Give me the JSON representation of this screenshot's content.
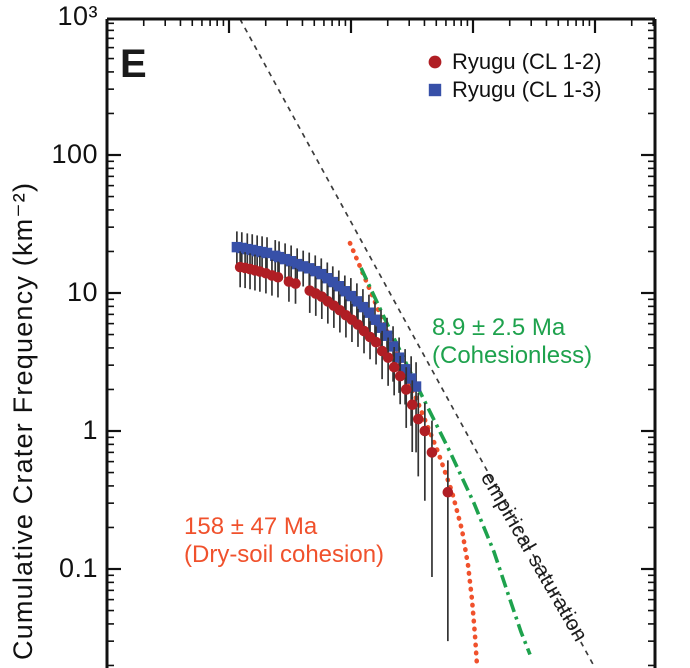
{
  "panel_label": "E",
  "colors": {
    "red_series": "#b01e24",
    "blue_series": "#3750a8",
    "green_fit": "#1ea24d",
    "orange_fit": "#f0512c",
    "saturation_line": "#3c3c3c",
    "error_bar": "#333333",
    "axis": "#111111"
  },
  "legend": {
    "items": [
      {
        "label": "Ryugu (CL 1-2)",
        "marker": "circle",
        "color": "#b01e24"
      },
      {
        "label": "Ryugu (CL 1-3)",
        "marker": "square",
        "color": "#3750a8"
      }
    ]
  },
  "annotations": {
    "cohesionless": {
      "line1": "8.9 ± 2.5 Ma",
      "line2": "(Cohesionless)",
      "color": "#1ea24d"
    },
    "dry_soil": {
      "line1": "158 ± 47 Ma",
      "line2": "(Dry-soil cohesion)",
      "color": "#f0512c"
    },
    "saturation": {
      "text": "empirical saturation",
      "color": "#1b1b1b"
    }
  },
  "y_axis": {
    "title": "Cumulative Crater Frequency (km⁻²)",
    "scale": "log",
    "tick_labels": [
      "10³",
      "100",
      "10",
      "1",
      "0.1"
    ],
    "tick_values": [
      1000,
      100,
      10,
      1,
      0.1
    ],
    "range_top": 1000,
    "range_bottom_visible": 0.019
  },
  "x_axis": {
    "scale": "log",
    "tick_labels_visible": false,
    "decades_visible": 4.5
  },
  "chart_data": {
    "type": "scatter",
    "x_unit": "fraction of plot width (log diameter axis, labels cut off)",
    "y_unit": "cumulative crater frequency (km^-2)",
    "series": [
      {
        "name": "Ryugu (CL 1-3)",
        "marker": "square",
        "color_key": "blue_series",
        "points": [
          [
            0.237,
            21.5,
            1.3,
            1.4
          ],
          [
            0.246,
            21.2,
            1.3,
            1.4
          ],
          [
            0.256,
            20.8,
            1.3,
            1.4
          ],
          [
            0.265,
            20.5,
            1.3,
            1.4
          ],
          [
            0.274,
            20.1,
            1.3,
            1.4
          ],
          [
            0.283,
            19.8,
            1.3,
            1.4
          ],
          [
            0.292,
            19.5,
            1.3,
            1.4
          ],
          [
            0.307,
            18.6,
            1.3,
            1.4
          ],
          [
            0.314,
            18.2,
            1.3,
            1.4
          ],
          [
            0.325,
            17.6,
            1.3,
            1.4
          ],
          [
            0.336,
            17.0,
            1.3,
            1.4
          ],
          [
            0.347,
            16.2,
            1.3,
            1.4
          ],
          [
            0.358,
            15.6,
            1.3,
            1.4
          ],
          [
            0.369,
            15.1,
            1.3,
            1.4
          ],
          [
            0.38,
            14.4,
            1.3,
            1.4
          ],
          [
            0.391,
            13.7,
            1.3,
            1.4
          ],
          [
            0.402,
            12.8,
            1.3,
            1.4
          ],
          [
            0.412,
            12.0,
            1.3,
            1.4
          ],
          [
            0.423,
            11.2,
            1.3,
            1.4
          ],
          [
            0.434,
            10.3,
            1.3,
            1.4
          ],
          [
            0.445,
            9.5,
            1.35,
            1.5
          ],
          [
            0.456,
            8.7,
            1.35,
            1.5
          ],
          [
            0.467,
            7.9,
            1.35,
            1.5
          ],
          [
            0.478,
            7.2,
            1.35,
            1.5
          ],
          [
            0.489,
            6.4,
            1.35,
            1.5
          ],
          [
            0.5,
            5.6,
            1.35,
            1.5
          ],
          [
            0.511,
            4.9,
            1.35,
            1.5
          ],
          [
            0.522,
            4.1,
            1.4,
            1.8
          ],
          [
            0.533,
            3.4,
            1.4,
            1.8
          ],
          [
            0.544,
            2.8,
            1.4,
            1.8
          ],
          [
            0.555,
            2.4,
            1.45,
            2.2
          ],
          [
            0.564,
            2.1,
            1.5,
            3.0
          ]
        ]
      },
      {
        "name": "Ryugu (CL 1-2)",
        "marker": "circle",
        "color_key": "red_series",
        "points": [
          [
            0.243,
            15.4,
            1.3,
            1.4
          ],
          [
            0.252,
            15.2,
            1.3,
            1.4
          ],
          [
            0.261,
            14.9,
            1.3,
            1.4
          ],
          [
            0.27,
            14.6,
            1.3,
            1.4
          ],
          [
            0.279,
            14.3,
            1.3,
            1.4
          ],
          [
            0.29,
            13.9,
            1.3,
            1.4
          ],
          [
            0.301,
            13.4,
            1.3,
            1.4
          ],
          [
            0.312,
            13.0,
            1.3,
            1.4
          ],
          [
            0.332,
            12.1,
            1.3,
            1.4
          ],
          [
            0.344,
            11.7,
            1.3,
            1.4
          ],
          [
            0.37,
            10.4,
            1.3,
            1.45
          ],
          [
            0.381,
            9.9,
            1.3,
            1.45
          ],
          [
            0.392,
            9.4,
            1.3,
            1.45
          ],
          [
            0.403,
            8.7,
            1.3,
            1.45
          ],
          [
            0.414,
            8.1,
            1.3,
            1.45
          ],
          [
            0.425,
            7.5,
            1.3,
            1.45
          ],
          [
            0.436,
            6.9,
            1.3,
            1.45
          ],
          [
            0.447,
            6.4,
            1.3,
            1.45
          ],
          [
            0.458,
            5.9,
            1.3,
            1.45
          ],
          [
            0.469,
            5.3,
            1.3,
            1.45
          ],
          [
            0.48,
            4.8,
            1.3,
            1.45
          ],
          [
            0.491,
            4.4,
            1.3,
            1.45
          ],
          [
            0.502,
            3.8,
            1.4,
            1.6
          ],
          [
            0.513,
            3.4,
            1.4,
            1.6
          ],
          [
            0.524,
            2.9,
            1.4,
            1.6
          ],
          [
            0.535,
            2.5,
            1.4,
            1.6
          ],
          [
            0.546,
            2.0,
            1.45,
            1.9
          ],
          [
            0.557,
            1.55,
            1.5,
            2.2
          ],
          [
            0.568,
            1.22,
            1.55,
            2.6
          ],
          [
            0.58,
            1.0,
            1.6,
            3.2
          ],
          [
            0.593,
            0.7,
            1.7,
            8.0
          ],
          [
            0.622,
            0.36,
            1.7,
            12.0
          ]
        ]
      }
    ],
    "fit_lines": [
      {
        "name": "Cohesionless model, 8.9 ± 2.5 Ma",
        "style": "dashdot",
        "color_key": "green_fit",
        "points": [
          [
            0.4635,
            15.2
          ],
          [
            0.5164,
            5.4
          ],
          [
            0.5712,
            1.92
          ],
          [
            0.6259,
            0.705
          ],
          [
            0.6697,
            0.3
          ],
          [
            0.7062,
            0.133
          ],
          [
            0.7336,
            0.063
          ],
          [
            0.7555,
            0.035
          ],
          [
            0.7719,
            0.024
          ]
        ]
      },
      {
        "name": "Dry-soil cohesion model, 158 ± 47 Ma",
        "style": "dotted",
        "color_key": "orange_fit",
        "points": [
          [
            0.4434,
            23.0
          ],
          [
            0.4836,
            9.7
          ],
          [
            0.5255,
            3.86
          ],
          [
            0.5675,
            1.6
          ],
          [
            0.604,
            0.705
          ],
          [
            0.6296,
            0.362
          ],
          [
            0.6478,
            0.192
          ],
          [
            0.6588,
            0.107
          ],
          [
            0.6661,
            0.06
          ],
          [
            0.6715,
            0.033
          ],
          [
            0.6752,
            0.02
          ]
        ]
      },
      {
        "name": "empirical saturation",
        "style": "dashed",
        "color_key": "saturation_line",
        "points": [
          [
            0.2427,
            966
          ],
          [
            0.8905,
            0.0192
          ]
        ]
      }
    ]
  }
}
